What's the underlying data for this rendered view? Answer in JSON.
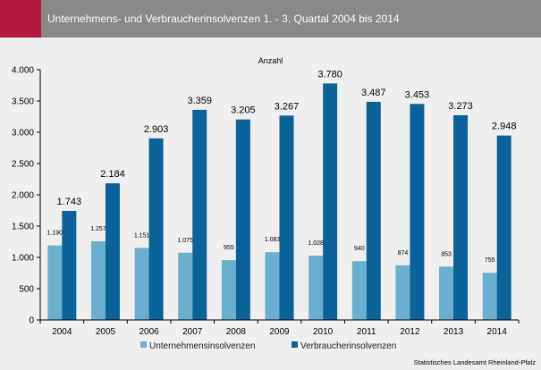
{
  "header": {
    "title": "Unternehmens- und Verbraucherinsolvenzen 1. - 3. Quartal 2004 bis 2014",
    "accent_color": "#b5173e",
    "bar_color": "#888888"
  },
  "source": "Statistisches Landesamt Rheinland-Pfalz",
  "chart_data": {
    "type": "bar",
    "title": "Unternehmens- und Verbraucherinsolvenzen 1. - 3. Quartal 2004 bis 2014",
    "ylabel": "Anzahl",
    "xlabel": "",
    "ylim": [
      0,
      4000
    ],
    "yticks": [
      0,
      500,
      1000,
      1500,
      2000,
      2500,
      3000,
      3500,
      4000
    ],
    "ytick_labels": [
      "0",
      "500",
      "1.000",
      "1.500",
      "2.000",
      "2.500",
      "3.000",
      "3.500",
      "4.000"
    ],
    "categories": [
      "2004",
      "2005",
      "2006",
      "2007",
      "2008",
      "2009",
      "2010",
      "2011",
      "2012",
      "2013",
      "2014"
    ],
    "grid": false,
    "legend": "bottom",
    "series": [
      {
        "name": "Unternehmensinsolvenzen",
        "color": "#6aaed0",
        "values": [
          1190,
          1257,
          1151,
          1075,
          955,
          1083,
          1028,
          940,
          874,
          853,
          755
        ],
        "labels": [
          "1.190",
          "1.257",
          "1.151",
          "1.075",
          "955",
          "1.083",
          "1.028",
          "940",
          "874",
          "853",
          "755"
        ]
      },
      {
        "name": "Verbraucherinsolvenzen",
        "color": "#0a6298",
        "values": [
          1743,
          2184,
          2903,
          3359,
          3205,
          3267,
          3780,
          3487,
          3453,
          3273,
          2948
        ],
        "labels": [
          "1.743",
          "2.184",
          "2.903",
          "3.359",
          "3.205",
          "3.267",
          "3.780",
          "3.487",
          "3.453",
          "3.273",
          "2.948"
        ]
      }
    ]
  }
}
